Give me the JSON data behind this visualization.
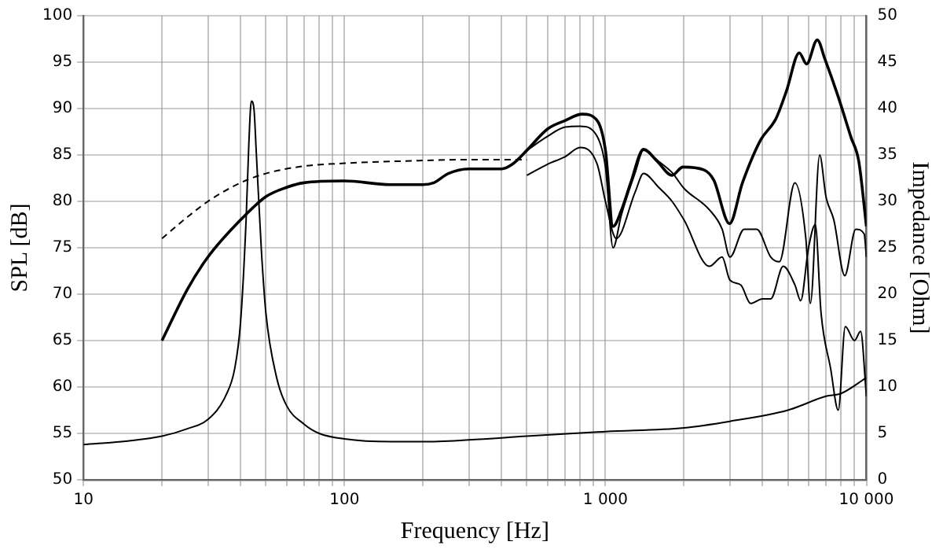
{
  "chart_data": {
    "type": "line",
    "xlabel": "Frequency [Hz]",
    "ylabel": "SPL [dB]",
    "y2label": "Impedance [Ohm]",
    "log": "x",
    "grid": true,
    "legend": false,
    "marker": "none",
    "xlim": [
      10,
      10000
    ],
    "xticks": [
      10,
      {
        "value": 20,
        "label": null
      },
      {
        "value": 30,
        "label": null
      },
      {
        "value": 40,
        "label": null
      },
      {
        "value": 50,
        "label": null
      },
      {
        "value": 60,
        "label": null
      },
      {
        "value": 70,
        "label": null
      },
      {
        "value": 80,
        "label": null
      },
      {
        "value": 90,
        "label": null
      },
      100,
      {
        "value": 200,
        "label": null
      },
      {
        "value": 300,
        "label": null
      },
      {
        "value": 400,
        "label": null
      },
      {
        "value": 500,
        "label": null
      },
      {
        "value": 600,
        "label": null
      },
      {
        "value": 700,
        "label": null
      },
      {
        "value": 800,
        "label": null
      },
      {
        "value": 900,
        "label": null
      },
      {
        "value": 1000,
        "label": "1 000"
      },
      {
        "value": 2000,
        "label": null
      },
      {
        "value": 3000,
        "label": null
      },
      {
        "value": 4000,
        "label": null
      },
      {
        "value": 5000,
        "label": null
      },
      {
        "value": 6000,
        "label": null
      },
      {
        "value": 7000,
        "label": null
      },
      {
        "value": 8000,
        "label": null
      },
      {
        "value": 9000,
        "label": null
      },
      {
        "value": 10000,
        "label": "10 000"
      }
    ],
    "ylim": [
      50,
      100
    ],
    "yticks": [
      50,
      55,
      60,
      65,
      70,
      75,
      80,
      85,
      90,
      95,
      100
    ],
    "y2lim": [
      0,
      50
    ],
    "y2ticks": [
      0,
      5,
      10,
      15,
      20,
      25,
      30,
      35,
      40,
      45,
      50
    ],
    "series": [
      {
        "color": "#000000",
        "line_style": "dashed",
        "x": [
          20,
          25,
          30,
          40,
          50,
          70,
          100,
          200,
          300,
          500
        ],
        "values": [
          76,
          78.3,
          80,
          82,
          83,
          83.8,
          84.1,
          84.4,
          84.5,
          84.5
        ]
      },
      {
        "color": "#000000",
        "line_style": "solid",
        "x": [
          20,
          25,
          30,
          40,
          50,
          60,
          70,
          100,
          150,
          200,
          220,
          250,
          300,
          400,
          440,
          500,
          600,
          700,
          815,
          930,
          1000,
          1070,
          1150,
          1250,
          1400,
          1580,
          1800,
          1980,
          2380,
          2600,
          2990,
          3350,
          3930,
          4500,
          4940,
          5530,
          5900,
          6480,
          6940,
          7790,
          8730,
          9350,
          10000
        ],
        "values": [
          65,
          70.5,
          74,
          78,
          80.5,
          81.5,
          82,
          82.2,
          81.8,
          81.8,
          82,
          83,
          83.5,
          83.5,
          84,
          85.5,
          87.8,
          88.7,
          89.4,
          88.7,
          85.5,
          77.3,
          79,
          82,
          85.6,
          84.3,
          82.8,
          83.7,
          83.4,
          82.3,
          77.6,
          82,
          86.6,
          88.9,
          91.9,
          96,
          94.8,
          97.4,
          95.3,
          91.3,
          86.9,
          84.3,
          77.3
        ]
      },
      {
        "color": "#000000",
        "line_style": "solid",
        "x": [
          500,
          600,
          700,
          800,
          930,
          1000,
          1070,
          1150,
          1300,
          1400,
          1600,
          1800,
          2000,
          2500,
          2800,
          3000,
          3400,
          3800,
          4300,
          4640,
          5320,
          5860,
          6100,
          6620,
          7000,
          7500,
          8260,
          9100,
          9800,
          10000
        ],
        "values": [
          85.5,
          87,
          88,
          88.1,
          87,
          83.7,
          75,
          78.5,
          83.1,
          85.5,
          84.3,
          83.1,
          81.4,
          79.1,
          77,
          74,
          77,
          77,
          74,
          73.5,
          82,
          76,
          69,
          85,
          80.5,
          78,
          72,
          77,
          76.5,
          74
        ]
      },
      {
        "color": "#000000",
        "line_style": "solid",
        "x": [
          500,
          600,
          700,
          800,
          930,
          1000,
          1100,
          1300,
          1400,
          1600,
          1800,
          2000,
          2500,
          2800,
          3000,
          3300,
          3600,
          4000,
          4300,
          4800,
          5320,
          5600,
          6000,
          6370,
          6700,
          7290,
          7800,
          8300,
          9000,
          9500,
          10000
        ],
        "values": [
          82.8,
          84,
          84.8,
          85.8,
          84,
          80,
          76,
          81,
          83,
          81.5,
          80,
          78,
          73,
          74,
          71.5,
          71,
          69,
          69.5,
          69.5,
          73,
          71,
          69.3,
          75,
          77.5,
          68,
          62,
          57.5,
          66.5,
          65,
          66,
          59
        ]
      },
      {
        "color": "#000000",
        "line_style": "solid",
        "axis": "y2",
        "x": [
          10,
          15,
          20,
          25,
          30,
          35,
          38,
          40,
          42,
          43,
          44,
          45,
          46,
          48,
          50,
          55,
          60,
          70,
          80,
          100,
          150,
          200,
          300,
          500,
          1000,
          2000,
          3000,
          5000,
          7000,
          8000,
          10000
        ],
        "values": [
          3.8,
          4.2,
          4.7,
          5.5,
          6.5,
          9,
          12,
          17,
          28,
          36,
          40.8,
          40,
          35,
          25,
          18,
          11,
          8,
          6,
          5,
          4.4,
          4.1,
          4.1,
          4.3,
          4.7,
          5.2,
          5.6,
          6.3,
          7.5,
          9,
          9.3,
          11
        ]
      }
    ]
  }
}
